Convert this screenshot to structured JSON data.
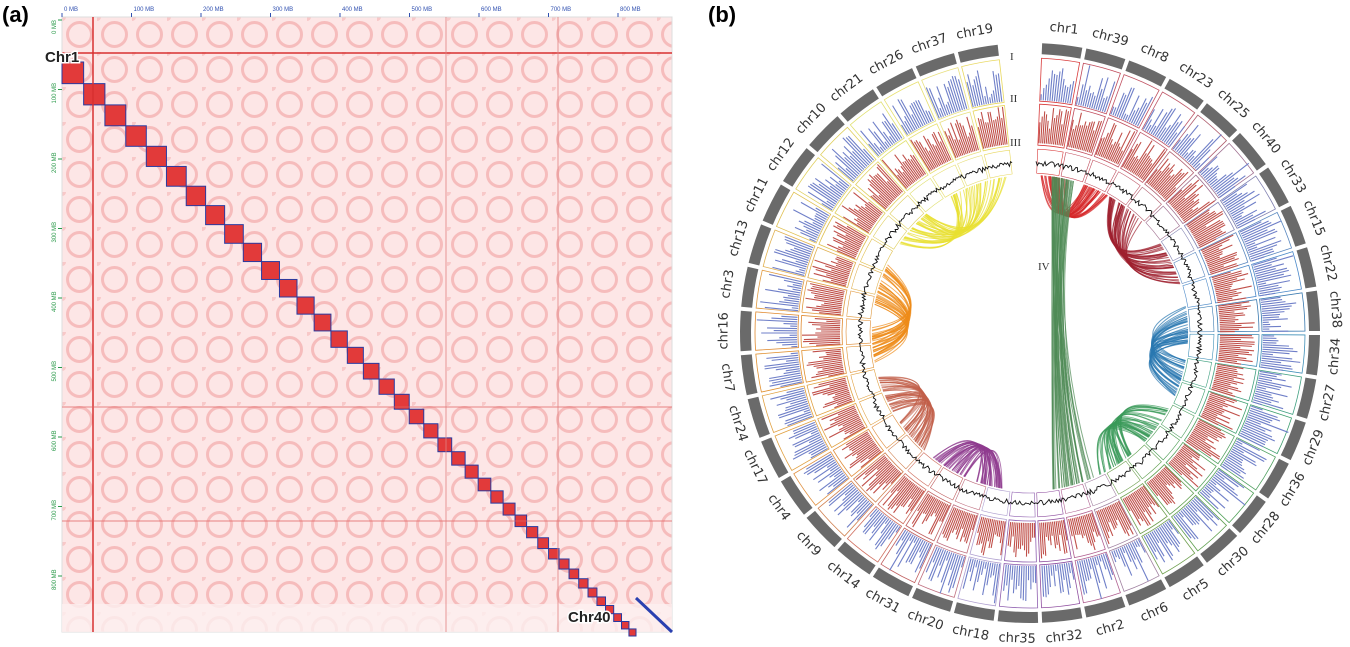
{
  "panel_a": {
    "label": "(a)",
    "x_ticks": [
      "0 MB",
      "100 MB",
      "200 MB",
      "300 MB",
      "400 MB",
      "500 MB",
      "600 MB",
      "700 MB",
      "800 MB"
    ],
    "y_ticks": [
      "0 MB",
      "100 MB",
      "200 MB",
      "300 MB",
      "400 MB",
      "500 MB",
      "600 MB",
      "700 MB",
      "800 MB"
    ],
    "start_label": "Chr1",
    "end_label": "Chr40"
  },
  "panel_b": {
    "label": "(b)",
    "chromosomes": [
      "chr1",
      "chr39",
      "chr8",
      "chr23",
      "chr25",
      "chr40",
      "chr33",
      "chr15",
      "chr22",
      "chr38",
      "chr34",
      "chr27",
      "chr29",
      "chr36",
      "chr28",
      "chr30",
      "chr5",
      "chr6",
      "chr2",
      "chr32",
      "chr35",
      "chr18",
      "chr20",
      "chr31",
      "chr14",
      "chr9",
      "chr4",
      "chr17",
      "chr24",
      "chr7",
      "chr16",
      "chr3",
      "chr13",
      "chr11",
      "chr12",
      "chr10",
      "chr21",
      "chr26",
      "chr37",
      "chr19"
    ],
    "ring_labels": [
      "I",
      "II",
      "III",
      "IV"
    ]
  }
}
